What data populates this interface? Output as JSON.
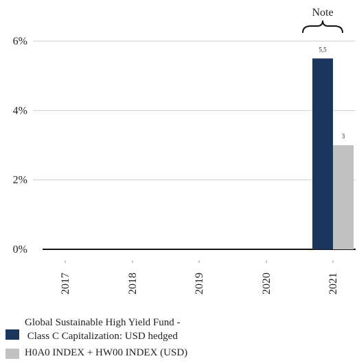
{
  "chart_data": {
    "type": "bar",
    "categories": [
      "2017",
      "2018",
      "2019",
      "2020",
      "2021"
    ],
    "series": [
      {
        "name": "Global Sustainable High Yield Fund - Class C Capitalization: USD hedged",
        "values": [
          null,
          null,
          null,
          null,
          5.5
        ],
        "data_labels": [
          "",
          "",
          "",
          "",
          "5,5"
        ],
        "color": "#1b365d"
      },
      {
        "name": "H0A0 INDEX + HW00 INDEX (USD)",
        "values": [
          null,
          null,
          null,
          null,
          3.0
        ],
        "data_labels": [
          "",
          "",
          "",
          "",
          "3"
        ],
        "color": "#c1c1c1"
      }
    ],
    "y_ticks": [
      "0%",
      "2%",
      "4%",
      "6%"
    ],
    "ylim": [
      0,
      6
    ],
    "grid": true,
    "annotation": "Note",
    "legend_position": "bottom"
  },
  "legend": {
    "item1_line1": "Global Sustainable High Yield Fund -",
    "item1_line2": "Class C Capitalization: USD hedged",
    "item2": "H0A0 INDEX + HW00 INDEX (USD)"
  }
}
